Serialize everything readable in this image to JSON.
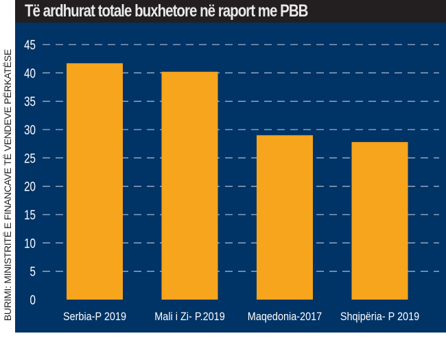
{
  "chart_data": {
    "type": "bar",
    "title": "Të ardhurat totale buxhetore  në raport me PBB",
    "source": "BURIMI: MINISTRITË E FINANCAVE TË VENDEVE PËRKATËSE",
    "categories": [
      "Serbia-P 2019",
      "Mali i Zi- P.2019",
      "Maqedonia-2017",
      "Shqipëria- P 2019"
    ],
    "values": [
      41.7,
      40.2,
      29.0,
      27.8
    ],
    "xlabel": "",
    "ylabel": "",
    "ylim": [
      0,
      45
    ],
    "yticks": [
      0,
      5,
      10,
      15,
      20,
      25,
      30,
      35,
      40,
      45
    ],
    "grid": true,
    "colors": {
      "bar": "#f7a51c",
      "background": "#003366",
      "title_bar": "#231f20",
      "grid": "#9fb3c8",
      "text": "#ffffff"
    }
  }
}
